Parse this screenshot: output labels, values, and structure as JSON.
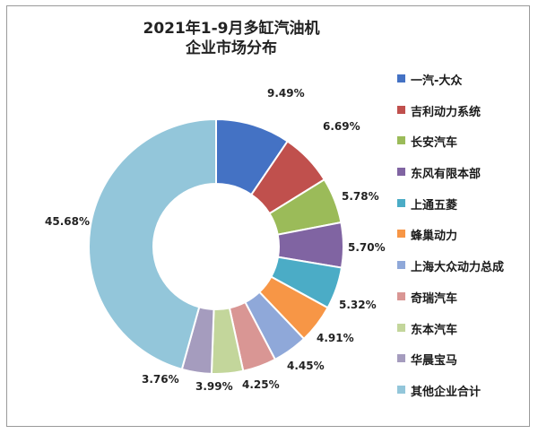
{
  "chart_data": {
    "type": "pie",
    "subtype": "donut",
    "title_line1": "2021年1-9月多缸汽油机",
    "title_line2": "企业市场分布",
    "legend_position": "right",
    "series": [
      {
        "label": "一汽-大众",
        "value": 9.49,
        "display": "9.49%",
        "color": "#4472c4"
      },
      {
        "label": "吉利动力系统",
        "value": 6.69,
        "display": "6.69%",
        "color": "#c0504d"
      },
      {
        "label": "长安汽车",
        "value": 5.78,
        "display": "5.78%",
        "color": "#9bbb59"
      },
      {
        "label": "东风有限本部",
        "value": 5.7,
        "display": "5.70%",
        "color": "#8064a2"
      },
      {
        "label": "上通五菱",
        "value": 5.32,
        "display": "5.32%",
        "color": "#4bacc6"
      },
      {
        "label": "蜂巢动力",
        "value": 4.91,
        "display": "4.91%",
        "color": "#f79646"
      },
      {
        "label": "上海大众动力总成",
        "value": 4.45,
        "display": "4.45%",
        "color": "#8fa8d9"
      },
      {
        "label": "奇瑞汽车",
        "value": 4.25,
        "display": "4.25%",
        "color": "#d99694"
      },
      {
        "label": "东本汽车",
        "value": 3.99,
        "display": "3.99%",
        "color": "#c3d69b"
      },
      {
        "label": "华晨宝马",
        "value": 3.76,
        "display": "3.76%",
        "color": "#a59cbe"
      },
      {
        "label": "其他企业合计",
        "value": 45.68,
        "display": "45.68%",
        "color": "#93c6da"
      }
    ]
  }
}
